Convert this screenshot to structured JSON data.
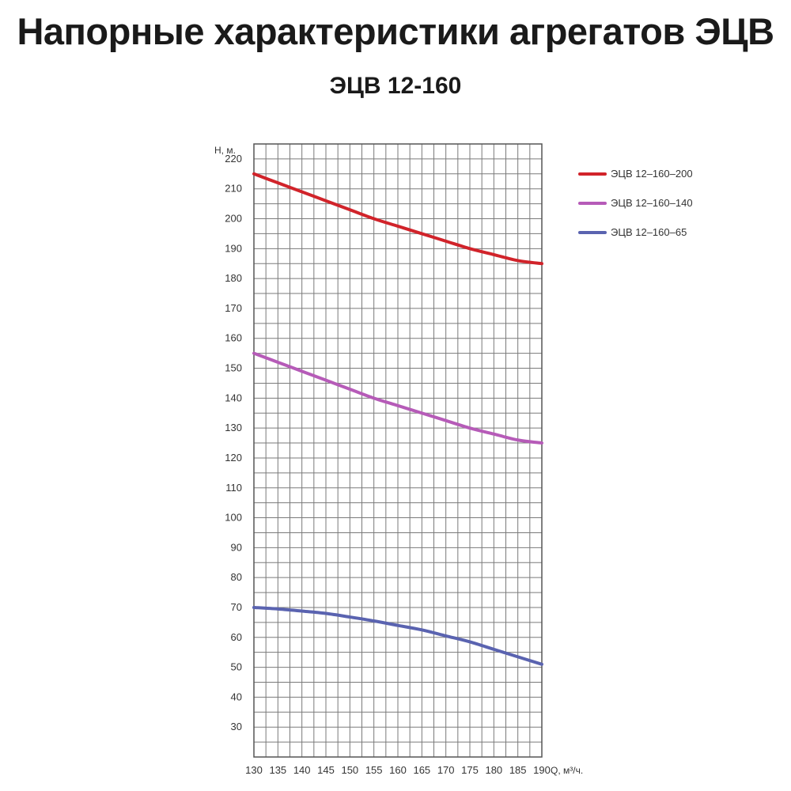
{
  "page": {
    "title": "Напорные характеристики агрегатов ЭЦВ",
    "subtitle": "ЭЦВ 12-160"
  },
  "chart_data": {
    "type": "line",
    "xlabel": "Q, м³/ч.",
    "ylabel": "H, м.",
    "xlim": [
      130,
      190
    ],
    "ylim": [
      20,
      225
    ],
    "x_ticks": [
      130,
      135,
      140,
      145,
      150,
      155,
      160,
      165,
      170,
      175,
      180,
      185,
      190
    ],
    "y_ticks": [
      30,
      40,
      50,
      60,
      70,
      80,
      90,
      100,
      110,
      120,
      130,
      140,
      150,
      160,
      170,
      180,
      190,
      200,
      210,
      220
    ],
    "grid": true,
    "legend_position": "right",
    "x": [
      130,
      135,
      140,
      145,
      150,
      155,
      160,
      165,
      170,
      175,
      180,
      185,
      190
    ],
    "series": [
      {
        "name": "ЭЦВ 12–160–200",
        "color": "#d1232a",
        "values": [
          215,
          212,
          209,
          206,
          203,
          200,
          197.5,
          195,
          192.5,
          190,
          188,
          186,
          185
        ]
      },
      {
        "name": "ЭЦВ 12–160–140",
        "color": "#b65bb8",
        "values": [
          155,
          152,
          149,
          146,
          143,
          140,
          137.5,
          135,
          132.5,
          130,
          128,
          126,
          125
        ]
      },
      {
        "name": "ЭЦВ 12–160–65",
        "color": "#5a63b0",
        "values": [
          70,
          69.5,
          68.8,
          68,
          66.8,
          65.5,
          64,
          62.5,
          60.5,
          58.5,
          56,
          53.5,
          51
        ]
      }
    ]
  }
}
